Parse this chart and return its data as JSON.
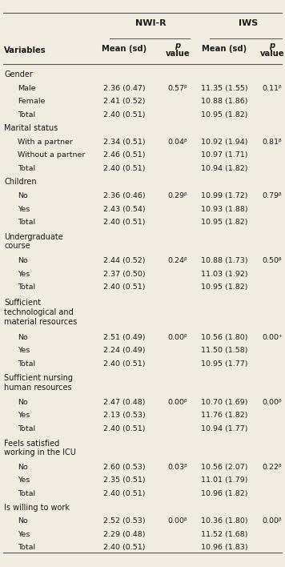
{
  "col_group_headers": [
    "NWI-R",
    "IWS"
  ],
  "sub_headers": [
    "Mean (sd)",
    "p\nvalue",
    "Mean (sd)",
    "p\nvalue"
  ],
  "var_label": "Variables",
  "rows": [
    {
      "label": "Gender",
      "type": "header",
      "nwi_mean": "",
      "nwi_p": "",
      "iws_mean": "",
      "iws_p": ""
    },
    {
      "label": "Male",
      "type": "data",
      "nwi_mean": "2.36 (0.47)",
      "nwi_p": "0.57ᵝ",
      "iws_mean": "11.35 (1.55)",
      "iws_p": "0.11ᵝ"
    },
    {
      "label": "Female",
      "type": "data",
      "nwi_mean": "2.41 (0.52)",
      "nwi_p": "",
      "iws_mean": "10.88 (1.86)",
      "iws_p": ""
    },
    {
      "label": "Total",
      "type": "data",
      "nwi_mean": "2.40 (0.51)",
      "nwi_p": "",
      "iws_mean": "10.95 (1.82)",
      "iws_p": ""
    },
    {
      "label": "Marital status",
      "type": "header",
      "nwi_mean": "",
      "nwi_p": "",
      "iws_mean": "",
      "iws_p": ""
    },
    {
      "label": "With a partner",
      "type": "data",
      "nwi_mean": "2.34 (0.51)",
      "nwi_p": "0.04ᵝ",
      "iws_mean": "10.92 (1.94)",
      "iws_p": "0.81ᵝ"
    },
    {
      "label": "Without a partner",
      "type": "data",
      "nwi_mean": "2.46 (0.51)",
      "nwi_p": "",
      "iws_mean": "10.97 (1.71)",
      "iws_p": ""
    },
    {
      "label": "Total",
      "type": "data",
      "nwi_mean": "2.40 (0.51)",
      "nwi_p": "",
      "iws_mean": "10.94 (1.82)",
      "iws_p": ""
    },
    {
      "label": "Children",
      "type": "header",
      "nwi_mean": "",
      "nwi_p": "",
      "iws_mean": "",
      "iws_p": ""
    },
    {
      "label": "No",
      "type": "data",
      "nwi_mean": "2.36 (0.46)",
      "nwi_p": "0.29ᵝ",
      "iws_mean": "10.99 (1.72)",
      "iws_p": "0.79ᵝ"
    },
    {
      "label": "Yes",
      "type": "data",
      "nwi_mean": "2.43 (0.54)",
      "nwi_p": "",
      "iws_mean": "10.93 (1.88)",
      "iws_p": ""
    },
    {
      "label": "Total",
      "type": "data",
      "nwi_mean": "2.40 (0.51)",
      "nwi_p": "",
      "iws_mean": "10.95 (1.82)",
      "iws_p": ""
    },
    {
      "label": "Undergraduate\ncourse",
      "type": "header",
      "nwi_mean": "",
      "nwi_p": "",
      "iws_mean": "",
      "iws_p": ""
    },
    {
      "label": "No",
      "type": "data",
      "nwi_mean": "2.44 (0.52)",
      "nwi_p": "0.24ᵝ",
      "iws_mean": "10.88 (1.73)",
      "iws_p": "0.50ᵝ"
    },
    {
      "label": "Yes",
      "type": "data",
      "nwi_mean": "2.37 (0.50)",
      "nwi_p": "",
      "iws_mean": "11.03 (1.92)",
      "iws_p": ""
    },
    {
      "label": "Total",
      "type": "data",
      "nwi_mean": "2.40 (0.51)",
      "nwi_p": "",
      "iws_mean": "10.95 (1.82)",
      "iws_p": ""
    },
    {
      "label": "Sufficient\ntechnological and\nmaterial resources",
      "type": "header",
      "nwi_mean": "",
      "nwi_p": "",
      "iws_mean": "",
      "iws_p": ""
    },
    {
      "label": "No",
      "type": "data",
      "nwi_mean": "2.51 (0.49)",
      "nwi_p": "0.00ᵝ",
      "iws_mean": "10.56 (1.80)",
      "iws_p": "0.00⁺"
    },
    {
      "label": "Yes",
      "type": "data",
      "nwi_mean": "2.24 (0.49)",
      "nwi_p": "",
      "iws_mean": "11.50 (1.58)",
      "iws_p": ""
    },
    {
      "label": "Total",
      "type": "data",
      "nwi_mean": "2.40 (0.51)",
      "nwi_p": "",
      "iws_mean": "10.95 (1.77)",
      "iws_p": ""
    },
    {
      "label": "Sufficient nursing\nhuman resources",
      "type": "header",
      "nwi_mean": "",
      "nwi_p": "",
      "iws_mean": "",
      "iws_p": ""
    },
    {
      "label": "No",
      "type": "data",
      "nwi_mean": "2.47 (0.48)",
      "nwi_p": "0.00ᵝ",
      "iws_mean": "10.70 (1.69)",
      "iws_p": "0.00ᵝ"
    },
    {
      "label": "Yes",
      "type": "data",
      "nwi_mean": "2.13 (0.53)",
      "nwi_p": "",
      "iws_mean": "11.76 (1.82)",
      "iws_p": ""
    },
    {
      "label": "Total",
      "type": "data",
      "nwi_mean": "2.40 (0.51)",
      "nwi_p": "",
      "iws_mean": "10.94 (1.77)",
      "iws_p": ""
    },
    {
      "label": "Feels satisfied\nworking in the ICU",
      "type": "header",
      "nwi_mean": "",
      "nwi_p": "",
      "iws_mean": "",
      "iws_p": ""
    },
    {
      "label": "No",
      "type": "data",
      "nwi_mean": "2.60 (0.53)",
      "nwi_p": "0.03ᵝ",
      "iws_mean": "10.56 (2.07)",
      "iws_p": "0.22ᵝ"
    },
    {
      "label": "Yes",
      "type": "data",
      "nwi_mean": "2.35 (0.51)",
      "nwi_p": "",
      "iws_mean": "11.01 (1.79)",
      "iws_p": ""
    },
    {
      "label": "Total",
      "type": "data",
      "nwi_mean": "2.40 (0.51)",
      "nwi_p": "",
      "iws_mean": "10.96 (1.82)",
      "iws_p": ""
    },
    {
      "label": "Is willing to work",
      "type": "header",
      "nwi_mean": "",
      "nwi_p": "",
      "iws_mean": "",
      "iws_p": ""
    },
    {
      "label": "No",
      "type": "data",
      "nwi_mean": "2.52 (0.53)",
      "nwi_p": "0.00ᵝ",
      "iws_mean": "10.36 (1.80)",
      "iws_p": "0.00ᵝ"
    },
    {
      "label": "Yes",
      "type": "data",
      "nwi_mean": "2.29 (0.48)",
      "nwi_p": "",
      "iws_mean": "11.52 (1.68)",
      "iws_p": ""
    },
    {
      "label": "Total",
      "type": "data",
      "nwi_mean": "2.40 (0.51)",
      "nwi_p": "",
      "iws_mean": "10.96 (1.83)",
      "iws_p": ""
    }
  ],
  "bg_color": "#f2ece0",
  "text_color": "#1a1a1a",
  "line_color": "#555555",
  "fs_data": 6.8,
  "fs_header": 7.0,
  "fs_col": 8.0,
  "fs_subhdr": 7.2
}
